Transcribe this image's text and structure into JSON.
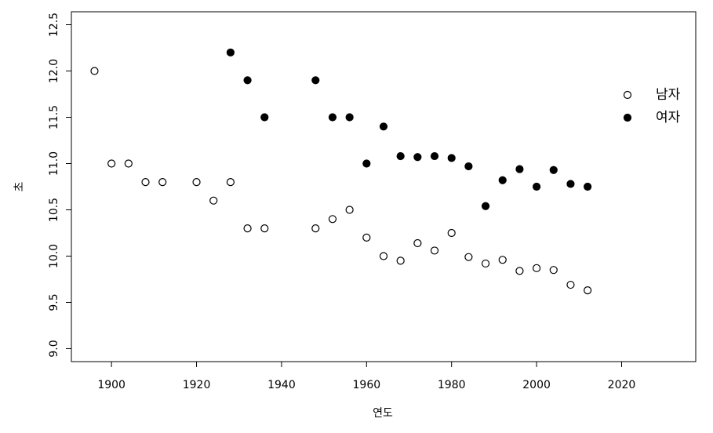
{
  "chart_data": {
    "type": "scatter",
    "xlabel": "연도",
    "ylabel": "초",
    "xlim": [
      1890.56,
      2037.44
    ],
    "xticks": [
      1900,
      1920,
      1940,
      1960,
      1980,
      2000,
      2020
    ],
    "ylim": [
      8.86,
      12.64
    ],
    "yticks": [
      {
        "value": 9,
        "label": "9.0"
      },
      9.5,
      {
        "value": 10,
        "label": "10.0"
      },
      10.5,
      {
        "value": 11,
        "label": "11.0"
      },
      11.5,
      {
        "value": 12,
        "label": "12.0"
      },
      12.5
    ],
    "legend": "right",
    "series": [
      {
        "name": "남자",
        "color": "#000000",
        "marker": "open",
        "x": [
          1896,
          1900,
          1904,
          1908,
          1912,
          1920,
          1924,
          1928,
          1932,
          1936,
          1948,
          1952,
          1956,
          1960,
          1964,
          1968,
          1972,
          1976,
          1980,
          1984,
          1988,
          1992,
          1996,
          2000,
          2004,
          2008,
          2012
        ],
        "values": [
          12.0,
          11.0,
          11.0,
          10.8,
          10.8,
          10.8,
          10.6,
          10.8,
          10.3,
          10.3,
          10.3,
          10.4,
          10.5,
          10.2,
          10.0,
          9.95,
          10.14,
          10.06,
          10.25,
          9.99,
          9.92,
          9.96,
          9.84,
          9.87,
          9.85,
          9.69,
          9.63
        ]
      },
      {
        "name": "여자",
        "color": "#000000",
        "marker": "filled",
        "x": [
          1928,
          1932,
          1936,
          1948,
          1952,
          1956,
          1960,
          1964,
          1968,
          1972,
          1976,
          1980,
          1984,
          1988,
          1992,
          1996,
          2000,
          2004,
          2008,
          2012
        ],
        "values": [
          12.2,
          11.9,
          11.5,
          11.9,
          11.5,
          11.5,
          11.0,
          11.4,
          11.08,
          11.07,
          11.08,
          11.06,
          10.97,
          10.54,
          10.82,
          10.94,
          10.75,
          10.93,
          10.78,
          10.75
        ]
      }
    ]
  }
}
